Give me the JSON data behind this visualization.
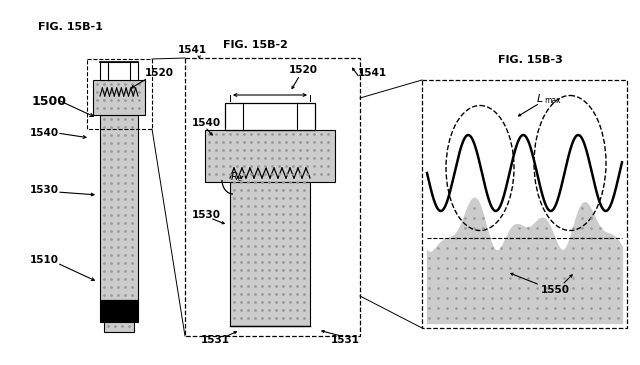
{
  "fig1_title": "FIG. 15B-1",
  "fig2_title": "FIG. 15B-2",
  "fig3_title": "FIG. 15B-3",
  "bg_color": "#ffffff",
  "stipple_color": "#cccccc",
  "dot_color": "#999999"
}
